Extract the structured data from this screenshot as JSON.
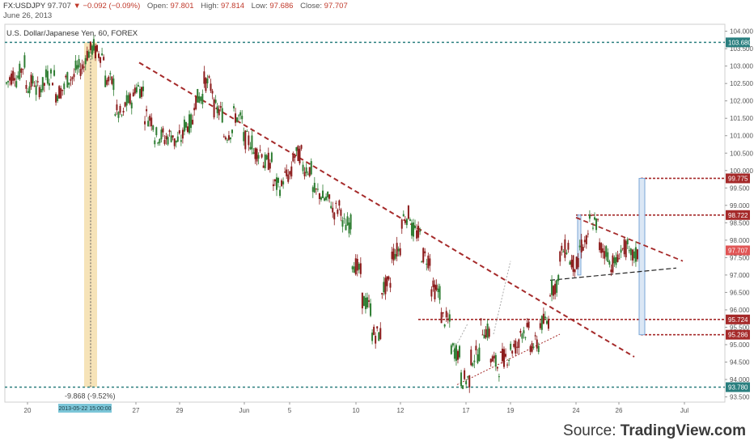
{
  "header": {
    "symbol": "FX:USDJPY",
    "last": "97.707",
    "change": "−0.092 (−0.09%)",
    "open_label": "Open:",
    "open": "97.801",
    "high_label": "High:",
    "high": "97.814",
    "low_label": "Low:",
    "low": "97.686",
    "close_label": "Close:",
    "close": "97.707",
    "date": "June 26, 2013"
  },
  "chart_title": "U.S. Dollar/Japanese Yen, 60, FOREX",
  "source": {
    "prefix": "Source: ",
    "brand": "TradingView.com"
  },
  "colors": {
    "up": "#2e7d32",
    "down": "#8b1a1a",
    "trendline": "#a52a2a",
    "level": "#a52a2a",
    "teal_level": "#2a7f7f",
    "highlight": "#f3d9a0",
    "measure": "#7aa6d6"
  },
  "chart_data": {
    "type": "candlestick",
    "title": "U.S. Dollar/Japanese Yen, 60, FOREX",
    "x_tick_labels": [
      "20",
      "27",
      "29",
      "Jun",
      "5",
      "10",
      "12",
      "17",
      "19",
      "24",
      "26",
      "Jul"
    ],
    "y_tick_labels": [
      "93.500",
      "94.000",
      "94.500",
      "95.000",
      "95.500",
      "96.000",
      "96.500",
      "97.000",
      "97.500",
      "98.000",
      "98.500",
      "99.000",
      "99.500",
      "100.000",
      "100.500",
      "101.000",
      "101.500",
      "102.000",
      "102.500",
      "103.000",
      "103.500",
      "104.000"
    ],
    "ylim": [
      93.35,
      104.2
    ],
    "price_tags": [
      {
        "label": "103.680",
        "value": 103.68,
        "style": "teal"
      },
      {
        "label": "99.775",
        "value": 99.775,
        "style": "red"
      },
      {
        "label": "98.722",
        "value": 98.722,
        "style": "red"
      },
      {
        "label": "97.707",
        "value": 97.707,
        "style": "last"
      },
      {
        "label": "95.724",
        "value": 95.724,
        "style": "red"
      },
      {
        "label": "95.286",
        "value": 95.286,
        "style": "red"
      },
      {
        "label": "93.780",
        "value": 93.78,
        "style": "teal"
      }
    ],
    "annotations": {
      "range_label": "-9.868  (-9.52%)",
      "cursor_date": "2013-05-22 15:00:00"
    },
    "series": [
      {
        "price_path": [
          [
            102.3,
            102.5
          ],
          [
            102.9,
            102.6
          ],
          [
            103.2,
            102.4
          ],
          [
            102.6,
            102.3
          ],
          [
            102.5,
            102.7
          ],
          [
            102.7,
            102.2
          ],
          [
            102.4,
            102.6
          ],
          [
            102.7,
            102.9
          ],
          [
            103.0,
            103.3
          ],
          [
            103.6,
            103.4
          ],
          [
            103.3,
            102.6
          ],
          [
            102.5,
            101.7
          ],
          [
            101.5,
            101.9
          ],
          [
            102.1,
            102.4
          ],
          [
            102.3,
            101.6
          ],
          [
            101.4,
            101.0
          ],
          [
            101.0,
            100.9
          ],
          [
            101.1,
            100.8
          ],
          [
            101.0,
            101.3
          ],
          [
            101.4,
            102.0
          ],
          [
            102.2,
            102.6
          ],
          [
            102.3,
            101.8
          ],
          [
            101.6,
            101.0
          ],
          [
            101.2,
            101.6
          ],
          [
            101.4,
            100.9
          ],
          [
            100.8,
            100.5
          ],
          [
            100.6,
            100.2
          ],
          [
            100.3,
            99.6
          ],
          [
            99.5,
            99.8
          ],
          [
            99.9,
            100.4
          ],
          [
            100.5,
            100.1
          ],
          [
            100.0,
            99.4
          ],
          [
            99.3,
            99.2
          ],
          [
            99.1,
            98.8
          ],
          [
            99.0,
            98.4
          ],
          [
            98.5,
            97.4
          ],
          [
            97.0,
            96.3
          ],
          [
            96.0,
            95.3
          ],
          [
            95.3,
            96.6
          ],
          [
            96.8,
            97.6
          ],
          [
            97.8,
            98.6
          ],
          [
            98.8,
            98.3
          ],
          [
            98.1,
            97.6
          ],
          [
            97.4,
            96.6
          ],
          [
            96.5,
            95.8
          ],
          [
            95.6,
            94.9
          ],
          [
            94.7,
            94.0
          ],
          [
            94.0,
            94.6
          ],
          [
            94.8,
            95.5
          ],
          [
            95.3,
            94.6
          ],
          [
            94.3,
            94.6
          ],
          [
            94.7,
            94.9
          ],
          [
            95.0,
            95.4
          ],
          [
            95.4,
            95.0
          ],
          [
            95.0,
            95.6
          ],
          [
            95.7,
            96.6
          ],
          [
            96.8,
            97.6
          ],
          [
            97.9,
            97.4
          ],
          [
            97.2,
            97.8
          ],
          [
            98.0,
            98.6
          ],
          [
            98.4,
            97.8
          ],
          [
            97.6,
            97.3
          ],
          [
            97.4,
            97.7
          ],
          [
            97.8,
            97.5
          ],
          [
            97.6,
            97.8
          ]
        ]
      }
    ]
  }
}
